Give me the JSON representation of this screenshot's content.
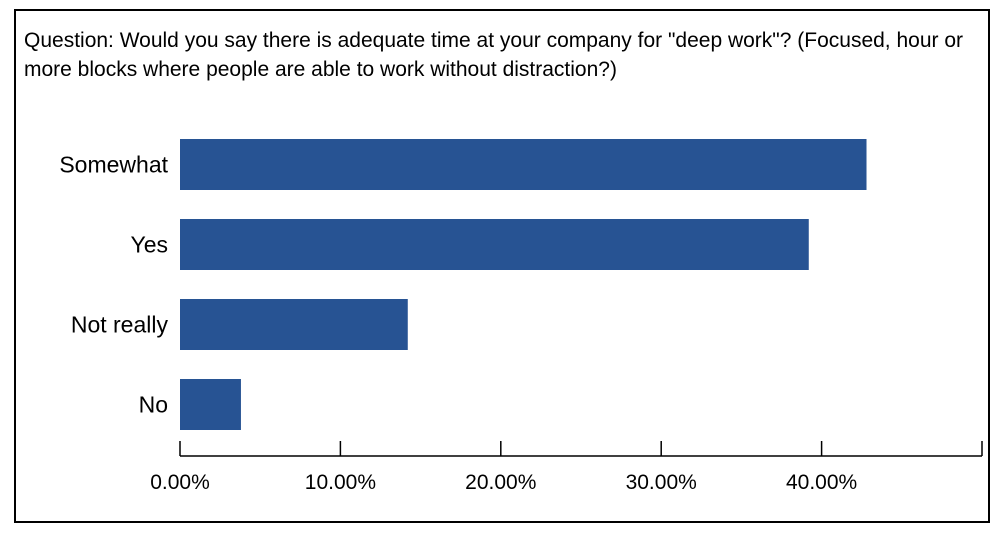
{
  "question": "Question: Would you say there is adequate time at your company for \"deep work\"? (Focused, hour or more blocks where people are able to work without distraction?)",
  "chart_data": {
    "type": "bar",
    "orientation": "horizontal",
    "title": "Question: Would you say there is adequate time at your company for \"deep work\"? (Focused, hour or more blocks where people are able to work without distraction?)",
    "categories": [
      "Somewhat",
      "Yes",
      "Not really",
      "No"
    ],
    "values": [
      42.8,
      39.2,
      14.2,
      3.8
    ],
    "unit": "%",
    "xlim": [
      0,
      50
    ],
    "xticks": [
      0,
      10,
      20,
      30,
      40,
      50
    ],
    "xtick_labels": [
      "0.00%",
      "10.00%",
      "20.00%",
      "30.00%",
      "40.00%",
      ""
    ],
    "grid": false,
    "bar_color": "#275393",
    "xlabel": "",
    "ylabel": ""
  }
}
